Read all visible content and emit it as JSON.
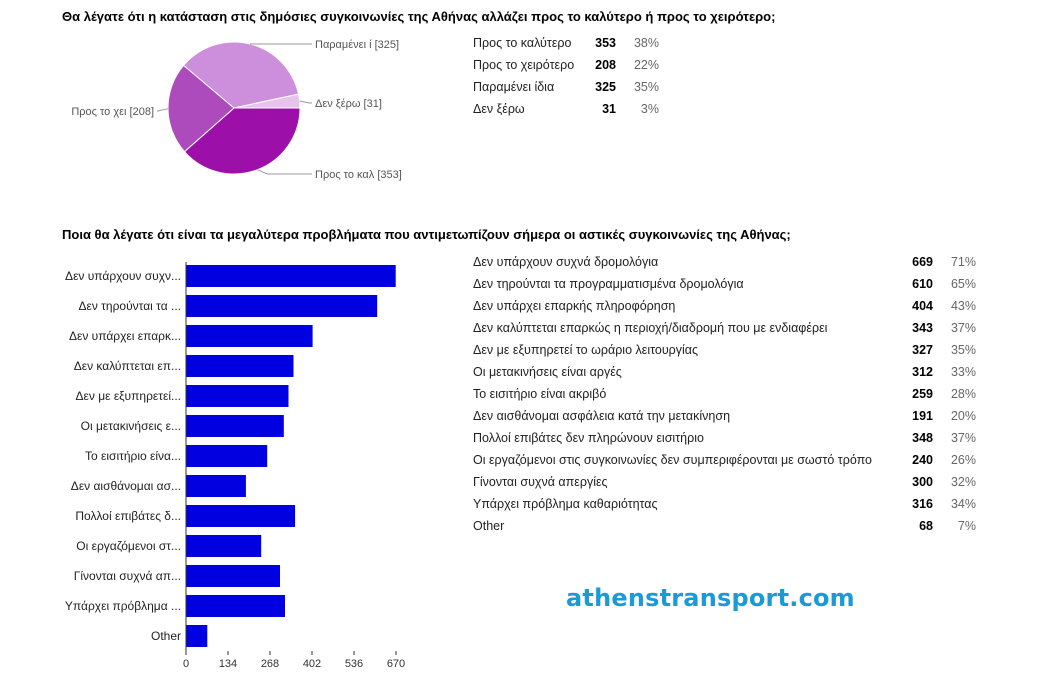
{
  "chart_data": [
    {
      "type": "pie",
      "title": "Θα λέγατε ότι η κατάσταση στις δημόσιες συγκοινωνίες της Αθήνας αλλάζει προς το καλύτερο ή προς το χειρότερο;",
      "slices": [
        {
          "label": "Προς το καλύτερο",
          "callout": "Προς το καλ [353]",
          "count": 353,
          "percent": "38%",
          "color": "#9c0fa8"
        },
        {
          "label": "Προς το χειρότερο",
          "callout": "Προς το χει [208]",
          "count": 208,
          "percent": "22%",
          "color": "#ad4bbd"
        },
        {
          "label": "Παραμένει ίδια",
          "callout": "Παραμένει ί [325]",
          "count": 325,
          "percent": "35%",
          "color": "#cd8fdb"
        },
        {
          "label": "Δεν ξέρω",
          "callout": "Δεν ξέρω [31]",
          "count": 31,
          "percent": "3%",
          "color": "#e5c3ec"
        }
      ]
    },
    {
      "type": "bar",
      "orientation": "horizontal",
      "title": "Ποια θα λέγατε ότι είναι τα μεγαλύτερα προβλήματα που αντιμετωπίζουν σήμερα οι αστικές συγκοινωνίες της Αθήνας;",
      "bar_color": "#0000e0",
      "xlim": [
        0,
        670
      ],
      "xticks": [
        "0",
        "134",
        "268",
        "402",
        "536",
        "670"
      ],
      "grid": false,
      "rows": [
        {
          "short": "Δεν υπάρχουν συχν...",
          "label": "Δεν υπάρχουν συχνά δρομολόγια",
          "value": 669,
          "percent": "71%"
        },
        {
          "short": "Δεν τηρούνται τα ...",
          "label": "Δεν τηρούνται τα προγραμματισμένα δρομολόγια",
          "value": 610,
          "percent": "65%"
        },
        {
          "short": "Δεν υπάρχει επαρκ...",
          "label": "Δεν υπάρχει επαρκής πληροφόρηση",
          "value": 404,
          "percent": "43%"
        },
        {
          "short": "Δεν καλύπτεται επ...",
          "label": "Δεν καλύπτεται επαρκώς η περιοχή/διαδρομή που με ενδιαφέρει",
          "value": 343,
          "percent": "37%"
        },
        {
          "short": "Δεν με εξυπηρετεί...",
          "label": "Δεν με εξυπηρετεί το ωράριο λειτουργίας",
          "value": 327,
          "percent": "35%"
        },
        {
          "short": "Οι μετακινήσεις ε...",
          "label": "Οι μετακινήσεις είναι αργές",
          "value": 312,
          "percent": "33%"
        },
        {
          "short": "Το εισιτήριο είνα...",
          "label": "Το εισιτήριο είναι ακριβό",
          "value": 259,
          "percent": "28%"
        },
        {
          "short": "Δεν αισθάνομαι ασ...",
          "label": "Δεν αισθάνομαι ασφάλεια κατά την μετακίνηση",
          "value": 191,
          "percent": "20%"
        },
        {
          "short": "Πολλοί επιβάτες δ...",
          "label": "Πολλοί επιβάτες δεν πληρώνουν εισιτήριο",
          "value": 348,
          "percent": "37%"
        },
        {
          "short": "Οι εργαζόμενοι στ...",
          "label": "Οι εργαζόμενοι στις συγκοινωνίες δεν συμπεριφέρονται με σωστό τρόπο",
          "value": 240,
          "percent": "26%"
        },
        {
          "short": "Γίνονται συχνά απ...",
          "label": "Γίνονται συχνά απεργίες",
          "value": 300,
          "percent": "32%"
        },
        {
          "short": "Υπάρχει πρόβλημα ...",
          "label": "Υπάρχει πρόβλημα καθαριότητας",
          "value": 316,
          "percent": "34%"
        },
        {
          "short": "Other",
          "label": "Other",
          "value": 68,
          "percent": "7%"
        }
      ]
    }
  ],
  "watermark": "athenstransport.com"
}
